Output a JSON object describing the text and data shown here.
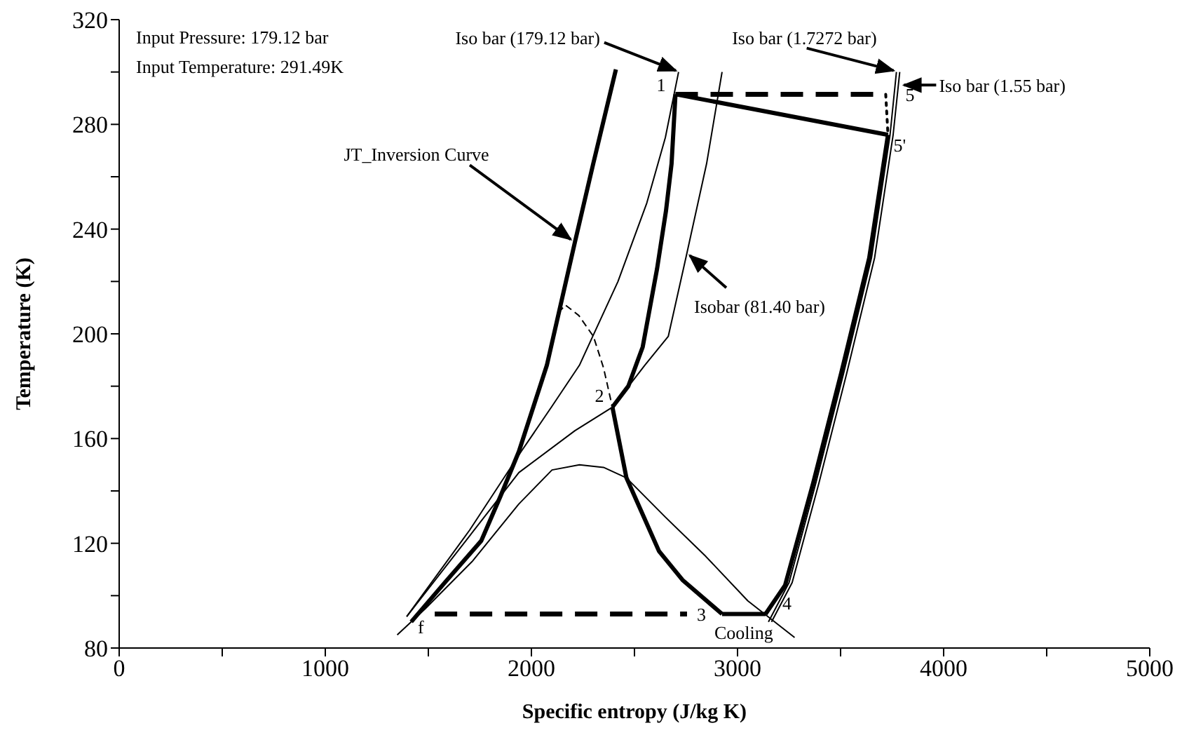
{
  "chart_data": {
    "type": "line",
    "xlabel": "Specific entropy (J/kg K)",
    "ylabel": "Temperature (K)",
    "xlim": [
      0,
      5000
    ],
    "ylim": [
      80,
      320
    ],
    "xticks": [
      0,
      {
        "value": 500,
        "label": null
      },
      1000,
      {
        "value": 1500,
        "label": null
      },
      2000,
      {
        "value": 2500,
        "label": null
      },
      3000,
      {
        "value": 3500,
        "label": null
      },
      4000,
      {
        "value": 4500,
        "label": null
      },
      5000
    ],
    "yticks": [
      80,
      {
        "value": 100,
        "label": null
      },
      120,
      {
        "value": 140,
        "label": null
      },
      160,
      {
        "value": 180,
        "label": null
      },
      200,
      {
        "value": 220,
        "label": null
      },
      240,
      {
        "value": 260,
        "label": null
      },
      280,
      {
        "value": 300,
        "label": null
      },
      320
    ],
    "marker": "none",
    "series": [
      {
        "color": "#000000",
        "x": [
          1417,
          1580,
          1757,
          1850,
          1939,
          2075,
          2211,
          2300,
          2410
        ],
        "values": [
          90,
          105,
          121,
          138,
          155,
          188,
          235,
          265,
          301
        ]
      },
      {
        "color": "#000000",
        "x": [
          2699,
          2680,
          2653,
          2610,
          2540,
          2470,
          2393
        ],
        "values": [
          291.5,
          265,
          247,
          225,
          195,
          180,
          172
        ]
      },
      {
        "color": "#000000",
        "x": [
          2393,
          2461,
          2619,
          2733,
          2925
        ],
        "values": [
          172,
          145,
          117,
          106,
          93
        ]
      },
      {
        "color": "#000000",
        "x": [
          2925,
          3136
        ],
        "values": [
          93,
          93
        ]
      },
      {
        "color": "#000000",
        "x": [
          3136,
          3231,
          3367,
          3503,
          3639,
          3730
        ],
        "values": [
          93,
          104,
          143,
          185,
          229,
          276
        ]
      },
      {
        "color": "#000000",
        "x": [
          3730,
          2699
        ],
        "values": [
          276,
          291.5
        ]
      },
      {
        "color": "#000000",
        "line_style": "dashed",
        "x": [
          2699,
          3719
        ],
        "values": [
          291.5,
          291.5
        ]
      },
      {
        "color": "#000000",
        "line_style": "dashed",
        "x": [
          1531,
          2755
        ],
        "values": [
          93,
          93
        ]
      },
      {
        "color": "#000000",
        "line_style": "dotted",
        "x": [
          3719,
          3730
        ],
        "values": [
          291.5,
          276
        ]
      },
      {
        "color": "#000000",
        "x": [
          1395,
          1700,
          1950,
          2097,
          2233,
          2420,
          2560,
          2650,
          2714
        ],
        "values": [
          92,
          125,
          155,
          172,
          188,
          220,
          250,
          275,
          300
        ]
      },
      {
        "color": "#000000",
        "x": [
          1395,
          1712,
          1939,
          2211,
          2393,
          2550,
          2664,
          2755,
          2850,
          2925
        ],
        "values": [
          92,
          124,
          147,
          163,
          172,
          188,
          199,
          231,
          265,
          300
        ]
      },
      {
        "color": "#000000",
        "x": [
          1349,
          1485,
          1712,
          1939,
          2100,
          2233,
          2350,
          2461,
          2650,
          2846,
          3050,
          3277
        ],
        "values": [
          85,
          95,
          113,
          135,
          148,
          150,
          149,
          145,
          130,
          115,
          98,
          84
        ]
      },
      {
        "color": "#000000",
        "line_style": "dashed",
        "x": [
          2130,
          2165,
          2230,
          2301,
          2350,
          2393
        ],
        "values": [
          208,
          211,
          207,
          199,
          187,
          172
        ]
      },
      {
        "color": "#000000",
        "x": [
          3150,
          3250,
          3380,
          3515,
          3650,
          3740,
          3771
        ],
        "values": [
          90,
          105,
          143,
          185,
          229,
          276,
          300
        ]
      },
      {
        "color": "#000000",
        "x": [
          3165,
          3265,
          3395,
          3530,
          3665,
          3755,
          3787
        ],
        "values": [
          90,
          105,
          143,
          185,
          229,
          276,
          300
        ]
      }
    ],
    "annotations": [
      "Input Pressure: 179.12 bar",
      "Input Temperature: 291.49K",
      {
        "text": "Iso bar (179.12 bar)",
        "x": 2714,
        "y": 300
      },
      {
        "text": "Iso bar (1.7272 bar)",
        "x": 3771,
        "y": 300
      },
      {
        "text": "Iso bar (1.55 bar)",
        "x": 3787,
        "y": 295
      },
      {
        "text": "JT_Inversion Curve",
        "x": 2211,
        "y": 235
      },
      {
        "text": "Isobar (81.40 bar)",
        "x": 2755,
        "y": 231
      },
      {
        "text": "1",
        "x": 2699,
        "y": 291.5
      },
      {
        "text": "2",
        "x": 2393,
        "y": 172
      },
      {
        "text": "3",
        "x": 2755,
        "y": 93
      },
      {
        "text": "4",
        "x": 3136,
        "y": 93
      },
      {
        "text": "5",
        "x": 3719,
        "y": 291.5
      },
      {
        "text": "5'",
        "x": 3730,
        "y": 276
      },
      {
        "text": "f",
        "x": 1531,
        "y": 93
      },
      {
        "text": "Cooling",
        "x": 3030,
        "y": 93
      }
    ]
  }
}
